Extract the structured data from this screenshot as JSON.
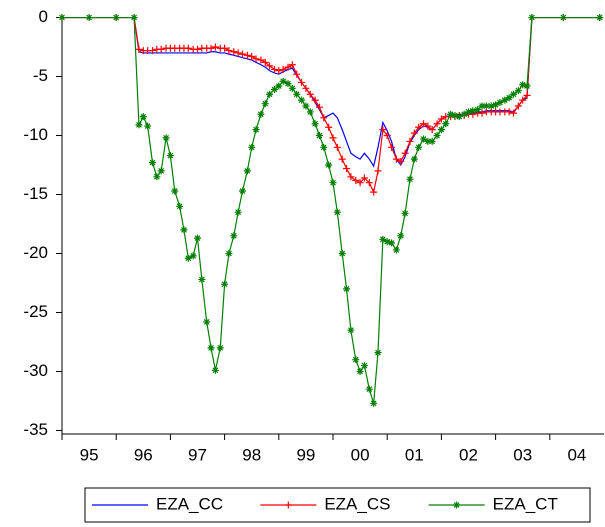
{
  "chart_data": {
    "type": "line",
    "x": [
      1995,
      1995.5,
      1996,
      1996.33,
      1996.42,
      1996.5,
      1996.58,
      1996.67,
      1996.75,
      1996.83,
      1996.92,
      1997.0,
      1997.08,
      1997.17,
      1997.25,
      1997.33,
      1997.42,
      1997.5,
      1997.58,
      1997.67,
      1997.75,
      1997.83,
      1997.92,
      1998.0,
      1998.08,
      1998.17,
      1998.25,
      1998.33,
      1998.42,
      1998.5,
      1998.58,
      1998.67,
      1998.75,
      1998.83,
      1998.92,
      1999.0,
      1999.08,
      1999.17,
      1999.25,
      1999.33,
      1999.42,
      1999.5,
      1999.58,
      1999.67,
      1999.75,
      1999.83,
      1999.92,
      2000.0,
      2000.08,
      2000.17,
      2000.25,
      2000.33,
      2000.42,
      2000.5,
      2000.58,
      2000.67,
      2000.75,
      2000.83,
      2000.92,
      2001.0,
      2001.08,
      2001.17,
      2001.25,
      2001.33,
      2001.42,
      2001.5,
      2001.58,
      2001.67,
      2001.75,
      2001.83,
      2001.92,
      2002.0,
      2002.08,
      2002.17,
      2002.25,
      2002.33,
      2002.42,
      2002.5,
      2002.58,
      2002.67,
      2002.75,
      2002.83,
      2002.92,
      2003.0,
      2003.08,
      2003.17,
      2003.25,
      2003.33,
      2003.42,
      2003.5,
      2003.58,
      2003.67,
      2004.25,
      2004.92
    ],
    "series": [
      {
        "name": "EZA_CC",
        "color": "#0000ff",
        "marker": "none",
        "values": [
          0,
          0,
          0,
          0,
          -2.9,
          -3,
          -3,
          -3,
          -3,
          -3,
          -3,
          -3,
          -3,
          -3,
          -3,
          -3,
          -3,
          -3,
          -3,
          -3,
          -2.9,
          -2.9,
          -3,
          -3,
          -3.1,
          -3.2,
          -3.3,
          -3.4,
          -3.5,
          -3.6,
          -3.8,
          -4,
          -4.2,
          -4.5,
          -4.7,
          -4.8,
          -4.6,
          -4.4,
          -4.3,
          -4.9,
          -5.5,
          -6,
          -6.5,
          -7.2,
          -7.8,
          -8.5,
          -8.3,
          -8.1,
          -8.5,
          -9.5,
          -10.5,
          -11.5,
          -11.8,
          -12,
          -11.5,
          -12,
          -12.6,
          -11,
          -8.9,
          -9.6,
          -10.5,
          -12,
          -12.5,
          -11.8,
          -10.6,
          -10,
          -9.5,
          -9.2,
          -9.3,
          -9.5,
          -9,
          -8.6,
          -8.4,
          -8.3,
          -8.3,
          -8.2,
          -8.2,
          -8.1,
          -8.1,
          -8,
          -8,
          -7.9,
          -7.9,
          -7.9,
          -7.9,
          -7.9,
          -7.9,
          -8,
          -7.5,
          -7,
          -6.8,
          0,
          0,
          0
        ]
      },
      {
        "name": "EZA_CS",
        "color": "#ff0000",
        "marker": "plus",
        "values": [
          0,
          0,
          0,
          0,
          -2.7,
          -2.8,
          -2.8,
          -2.8,
          -2.7,
          -2.7,
          -2.6,
          -2.6,
          -2.6,
          -2.6,
          -2.6,
          -2.6,
          -2.7,
          -2.7,
          -2.6,
          -2.6,
          -2.6,
          -2.5,
          -2.6,
          -2.6,
          -2.8,
          -2.9,
          -3,
          -3.1,
          -3.2,
          -3.3,
          -3.5,
          -3.6,
          -3.8,
          -4.1,
          -4.4,
          -4.5,
          -4.4,
          -4.2,
          -4,
          -4.8,
          -5.5,
          -6,
          -6.5,
          -7,
          -7.6,
          -8.5,
          -9.3,
          -10.2,
          -11,
          -12,
          -12.8,
          -13.5,
          -13.8,
          -14,
          -13.6,
          -14,
          -14.8,
          -13,
          -9.5,
          -10,
          -11,
          -12,
          -12.2,
          -11.5,
          -10.5,
          -9.8,
          -9.3,
          -9,
          -9.2,
          -9.5,
          -9,
          -8.6,
          -8.4,
          -8.4,
          -8.4,
          -8.3,
          -8.3,
          -8.2,
          -8.2,
          -8.1,
          -8.1,
          -8,
          -8,
          -8,
          -8,
          -8,
          -8,
          -8.1,
          -7.5,
          -7,
          -6.6,
          0,
          0,
          0
        ]
      },
      {
        "name": "EZA_CT",
        "color": "#008000",
        "marker": "star",
        "values": [
          0,
          0,
          0,
          0,
          -9.1,
          -8.4,
          -9.2,
          -12.3,
          -13.5,
          -13,
          -10.2,
          -11.7,
          -14.7,
          -16,
          -18,
          -20.4,
          -20.2,
          -18.7,
          -22.2,
          -25.8,
          -28,
          -29.9,
          -28,
          -22.6,
          -20,
          -18.5,
          -16.5,
          -14.7,
          -13,
          -11,
          -9.5,
          -8.2,
          -7.3,
          -6.5,
          -6.1,
          -5.8,
          -5.4,
          -5.6,
          -6,
          -6.5,
          -7,
          -7.5,
          -8,
          -9,
          -10,
          -11,
          -12.5,
          -14,
          -16.5,
          -20,
          -23,
          -26.5,
          -29,
          -30,
          -29.5,
          -31.5,
          -32.7,
          -28.4,
          -18.8,
          -19,
          -19.1,
          -19.7,
          -18.5,
          -16.6,
          -13.7,
          -12,
          -11,
          -10.3,
          -10.5,
          -10.5,
          -10,
          -9.5,
          -9,
          -8.2,
          -8.3,
          -8.4,
          -8.2,
          -8,
          -7.9,
          -7.8,
          -7.5,
          -7.5,
          -7.5,
          -7.4,
          -7.2,
          -7,
          -6.8,
          -6.5,
          -6.2,
          -5.7,
          -5.8,
          0,
          0,
          0
        ]
      }
    ],
    "xlim": [
      1995,
      2005
    ],
    "xticks": [
      {
        "value": 1995,
        "label": "95"
      },
      {
        "value": 1996,
        "label": "96"
      },
      {
        "value": 1997,
        "label": "97"
      },
      {
        "value": 1998,
        "label": "98"
      },
      {
        "value": 1999,
        "label": "99"
      },
      {
        "value": 2000,
        "label": "00"
      },
      {
        "value": 2001,
        "label": "01"
      },
      {
        "value": 2002,
        "label": "02"
      },
      {
        "value": 2003,
        "label": "03"
      },
      {
        "value": 2004,
        "label": "04"
      }
    ],
    "ylim": [
      -35.3,
      0.3
    ],
    "yticks": [
      0,
      -5,
      -10,
      -15,
      -20,
      -25,
      -30,
      -35
    ],
    "grid": false,
    "legend": "bottom"
  }
}
